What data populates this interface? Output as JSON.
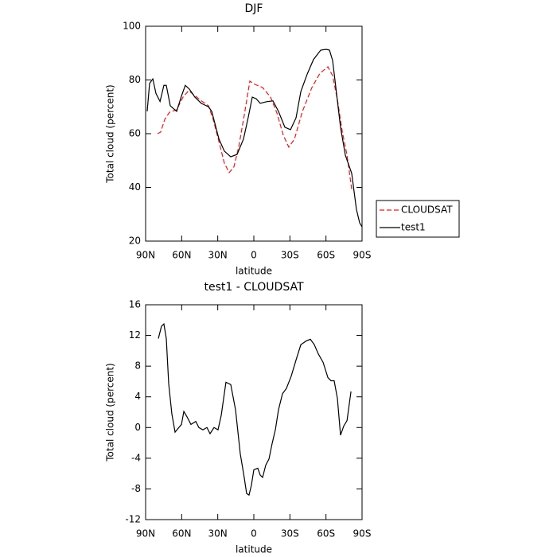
{
  "chart_data": [
    {
      "type": "line",
      "title": "DJF",
      "xlabel": "latitude",
      "ylabel": "Total cloud (percent)",
      "xlim": [
        90,
        -90
      ],
      "xticks": [
        {
          "value": 90,
          "label": "90N"
        },
        {
          "value": 60,
          "label": "60N"
        },
        {
          "value": 30,
          "label": "30N"
        },
        0,
        {
          "value": -30,
          "label": "30S"
        },
        {
          "value": -60,
          "label": "60S"
        },
        {
          "value": -90,
          "label": "90S"
        }
      ],
      "ylim": [
        20,
        100
      ],
      "yticks": [
        20,
        40,
        60,
        80,
        100
      ],
      "legend": "outside right",
      "series": [
        {
          "name": "CLOUDSAT",
          "color": "#e41a1c",
          "line_style": "dashed",
          "x": [
            80.1,
            77.5,
            74.1,
            70.1,
            64.2,
            58.9,
            54.3,
            49,
            44.3,
            37.7,
            33.8,
            29,
            24.5,
            20.5,
            16.6,
            12.6,
            8,
            3.3,
            -0.6,
            -7.3,
            -13.9,
            -19.2,
            -24.5,
            -29.1,
            -33.8,
            -40.4,
            -48.3,
            -55,
            -61.6,
            -65.5,
            -69.5,
            -73.5,
            -77.5,
            -81.4
          ],
          "values": [
            60,
            60.6,
            65.3,
            68,
            68.9,
            73.6,
            76,
            74.2,
            72.4,
            70.4,
            65.3,
            57,
            49,
            45.5,
            47.6,
            55,
            66.8,
            79.6,
            78.4,
            77.2,
            73.6,
            67.7,
            59.4,
            55,
            58,
            68.3,
            77.2,
            82.5,
            84.9,
            81.6,
            72.7,
            60.9,
            52,
            39.3
          ]
        },
        {
          "name": "test1",
          "color": "#000000",
          "line_style": "solid",
          "x": [
            88.7,
            86.7,
            84,
            81.4,
            78,
            74.8,
            72.8,
            69.5,
            64.2,
            60.2,
            57,
            53.6,
            49,
            43.7,
            37.7,
            35,
            29,
            24.5,
            19.2,
            13.9,
            8.6,
            4.6,
            1.3,
            -2,
            -5.3,
            -10.6,
            -15.9,
            -20.5,
            -25.8,
            -30.5,
            -35.1,
            -39.1,
            -44.4,
            -49.6,
            -55.6,
            -60.2,
            -62.9,
            -65.5,
            -68.2,
            -72.1,
            -76.1,
            -80,
            -81.4,
            -85.3,
            -88,
            -90
          ],
          "values": [
            68.3,
            78.7,
            80.4,
            75,
            72,
            78,
            78,
            70.4,
            68.3,
            74,
            78,
            76.6,
            73.6,
            71.3,
            70,
            68.3,
            58,
            53.5,
            51.4,
            52.3,
            58,
            66.2,
            73.6,
            73,
            71.3,
            71.9,
            72.2,
            68.3,
            62.4,
            61.5,
            65.9,
            75.7,
            82.2,
            87.6,
            91.1,
            91.4,
            91.1,
            87.3,
            77.2,
            62.4,
            52,
            47,
            45.2,
            31.9,
            26.8,
            25.3
          ]
        }
      ]
    },
    {
      "type": "line",
      "title": "test1 - CLOUDSAT",
      "xlabel": "latitude",
      "ylabel": "Total cloud (percent)",
      "xlim": [
        90,
        -90
      ],
      "xticks": [
        {
          "value": 90,
          "label": "90N"
        },
        {
          "value": 60,
          "label": "60N"
        },
        {
          "value": 30,
          "label": "30N"
        },
        0,
        {
          "value": -30,
          "label": "30S"
        },
        {
          "value": -60,
          "label": "60S"
        },
        {
          "value": -90,
          "label": "90S"
        }
      ],
      "ylim": [
        -12,
        16
      ],
      "yticks": [
        -12,
        -8,
        -4,
        0,
        4,
        8,
        12,
        16
      ],
      "series": [
        {
          "color": "#000000",
          "line_style": "solid",
          "x": [
            79.4,
            76.8,
            74.8,
            72.8,
            70.8,
            68.2,
            65.5,
            62.9,
            60.2,
            58.2,
            55.6,
            52.3,
            48.3,
            45.7,
            42.4,
            39,
            36.4,
            33.1,
            29.8,
            27.1,
            23.2,
            19.2,
            15.2,
            11.3,
            8,
            6,
            4,
            2,
            0,
            -3.3,
            -5.3,
            -7.3,
            -9.9,
            -12.6,
            -15.2,
            -17.9,
            -20.5,
            -23.8,
            -27.1,
            -31.1,
            -35.1,
            -39.1,
            -43.7,
            -47,
            -50.3,
            -53.6,
            -57.6,
            -61.6,
            -64.2,
            -66.8,
            -69.5,
            -72.1,
            -74.8,
            -77.5,
            -80.8
          ],
          "values": [
            11.6,
            13.2,
            13.5,
            11.6,
            5.7,
            1.8,
            -0.6,
            -0.1,
            0.4,
            2.1,
            1.4,
            0.4,
            0.8,
            0,
            -0.3,
            0,
            -0.8,
            0,
            -0.3,
            1.6,
            5.9,
            5.6,
            2.3,
            -3.4,
            -6.5,
            -8.6,
            -8.8,
            -7.5,
            -5.5,
            -5.3,
            -6.2,
            -6.5,
            -4.9,
            -4.1,
            -2.1,
            -0.3,
            2.3,
            4.4,
            5.1,
            6.7,
            8.8,
            10.8,
            11.3,
            11.5,
            10.8,
            9.6,
            8.5,
            6.5,
            6.1,
            6.1,
            3.8,
            -1,
            0.2,
            0.9,
            4.7
          ]
        }
      ]
    }
  ]
}
